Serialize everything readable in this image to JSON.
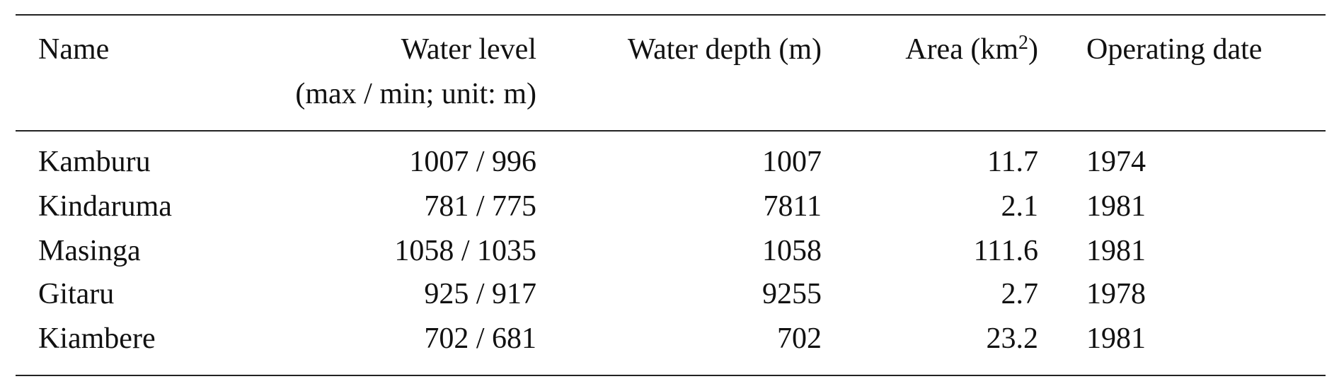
{
  "table": {
    "header": {
      "name": "Name",
      "water_level": [
        "Water level",
        "(max / min; unit: m)"
      ],
      "water_depth": "Water depth (m)",
      "area": [
        "Area (km",
        "2",
        ")"
      ],
      "operating_date": "Operating date"
    },
    "rows": [
      [
        "Kamburu",
        "1007 / 996",
        1007,
        11.7,
        1974
      ],
      [
        "Kindaruma",
        "781 / 775",
        7811,
        2.1,
        1981
      ],
      [
        "Masinga",
        "1058 / 1035",
        1058,
        111.6,
        1981
      ],
      [
        "Gitaru",
        "925 / 917",
        9255,
        2.7,
        1978
      ],
      [
        "Kiambere",
        "702 / 681",
        702,
        23.2,
        1981
      ]
    ]
  }
}
